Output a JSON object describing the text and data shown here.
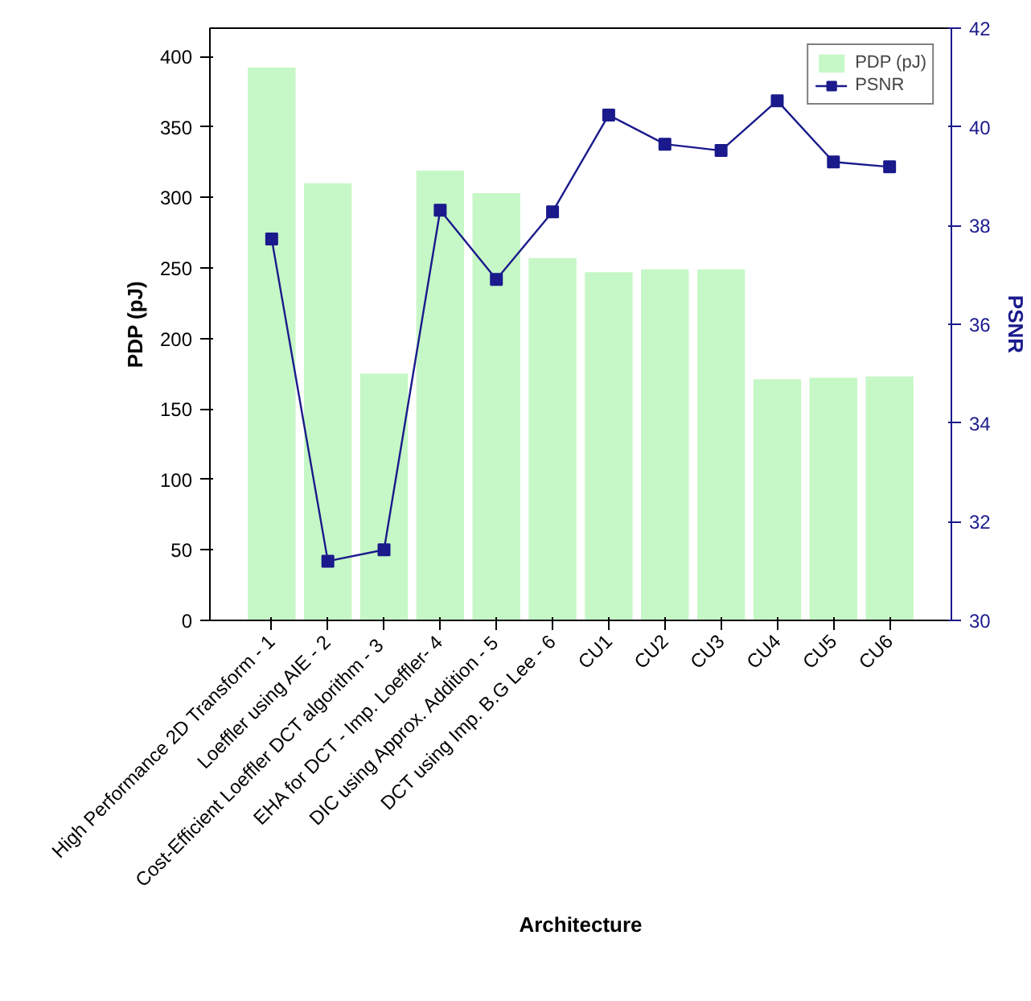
{
  "chart_data": {
    "type": "bar",
    "xlabel": "Architecture",
    "ylabel": "PDP (pJ)",
    "y2label": "PSNR",
    "categories": [
      "High Performance 2D Transform - 1",
      "Loeffler using AIE - 2",
      "Cost-Efficient Loeffler DCT algorithm  - 3",
      "EHA for DCT - Imp. Loeffler- 4",
      "DIC using Approx. Addition - 5",
      "DCT using Imp. B.G Lee - 6",
      "CU1",
      "CU2",
      "CU3",
      "CU4",
      "CU5",
      "CU6"
    ],
    "series": [
      {
        "name": "PDP (pJ)",
        "type": "bar",
        "color": "#c6f7c6",
        "values": [
          392,
          310,
          175,
          319,
          303,
          257,
          247,
          249,
          249,
          171,
          172,
          173
        ]
      },
      {
        "name": "PSNR",
        "type": "line",
        "axis": "y2",
        "color": "#1a1a8c",
        "marker": "square",
        "values": [
          37.73,
          31.2,
          31.43,
          38.31,
          36.91,
          38.28,
          40.24,
          39.65,
          39.52,
          40.53,
          39.29,
          39.19
        ]
      }
    ],
    "ylim": [
      0,
      420
    ],
    "yticks": [
      0,
      50,
      100,
      150,
      200,
      250,
      300,
      350,
      400
    ],
    "y2lim": [
      30,
      42
    ],
    "y2ticks": [
      30,
      32,
      34,
      36,
      38,
      40,
      42
    ],
    "grid": false,
    "legend": "top right"
  }
}
